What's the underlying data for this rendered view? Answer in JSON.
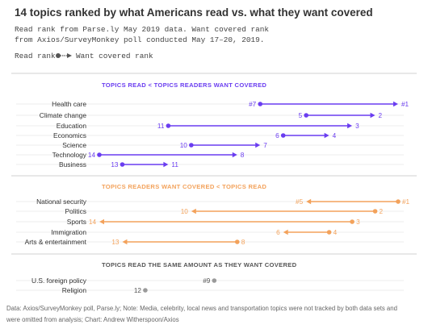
{
  "title": "14 topics ranked by what Americans read vs. what they want covered",
  "subtitle_line1": "Read rank from Parse.ly May 2019 data. Want covered rank",
  "subtitle_line2": "from Axios/SurveyMonkey poll conducted May 17–20, 2019.",
  "legend_read": "Read rank",
  "legend_want": "Want covered rank",
  "source_line1": "Data: Axios/SurveyMonkey poll, Parse.ly; Note: Media, celebrity, local news and transportation topics were not tracked by both data sets and",
  "source_line2": "were omitted from analysis; Chart: Andrew Witherspoon/Axios",
  "colors": {
    "purple": "#6a3df0",
    "orange": "#f3a25b",
    "gray": "#9a9a9a",
    "text": "#333333",
    "grid": "#e6e6e6"
  },
  "chart_data": {
    "type": "dumbbell",
    "x_scale": "rank 14 (left) to 1 (right)",
    "groups": [
      {
        "heading": "TOPICS READ < TOPICS READERS WANT COVERED",
        "color": "purple",
        "items": [
          {
            "topic": "Health care",
            "read": 7,
            "want": 1,
            "read_label": "#7",
            "want_label": "#1"
          },
          {
            "topic": "Climate change",
            "read": 5,
            "want": 2,
            "read_label": "5",
            "want_label": "2"
          },
          {
            "topic": "Education",
            "read": 11,
            "want": 3,
            "read_label": "11",
            "want_label": "3"
          },
          {
            "topic": "Economics",
            "read": 6,
            "want": 4,
            "read_label": "6",
            "want_label": "4"
          },
          {
            "topic": "Science",
            "read": 10,
            "want": 7,
            "read_label": "10",
            "want_label": "7"
          },
          {
            "topic": "Technology",
            "read": 14,
            "want": 8,
            "read_label": "14",
            "want_label": "8"
          },
          {
            "topic": "Business",
            "read": 13,
            "want": 11,
            "read_label": "13",
            "want_label": "11"
          }
        ]
      },
      {
        "heading": "TOPICS READERS WANT COVERED < TOPICS READ",
        "color": "orange",
        "items": [
          {
            "topic": "National security",
            "read": 1,
            "want": 5,
            "read_label": "#1",
            "want_label": "#5"
          },
          {
            "topic": "Politics",
            "read": 2,
            "want": 10,
            "read_label": "2",
            "want_label": "10"
          },
          {
            "topic": "Sports",
            "read": 3,
            "want": 14,
            "read_label": "3",
            "want_label": "14"
          },
          {
            "topic": "Immigration",
            "read": 4,
            "want": 6,
            "read_label": "4",
            "want_label": "6"
          },
          {
            "topic": "Arts & entertainment",
            "read": 8,
            "want": 13,
            "read_label": "8",
            "want_label": "13"
          }
        ]
      },
      {
        "heading": "TOPICS READ THE SAME AMOUNT AS THEY WANT COVERED",
        "color": "gray",
        "items": [
          {
            "topic": "U.S. foreign policy",
            "read": 9,
            "want": 9,
            "read_label": "#9",
            "want_label": ""
          },
          {
            "topic": "Religion",
            "read": 12,
            "want": 12,
            "read_label": "12",
            "want_label": ""
          }
        ]
      }
    ]
  }
}
